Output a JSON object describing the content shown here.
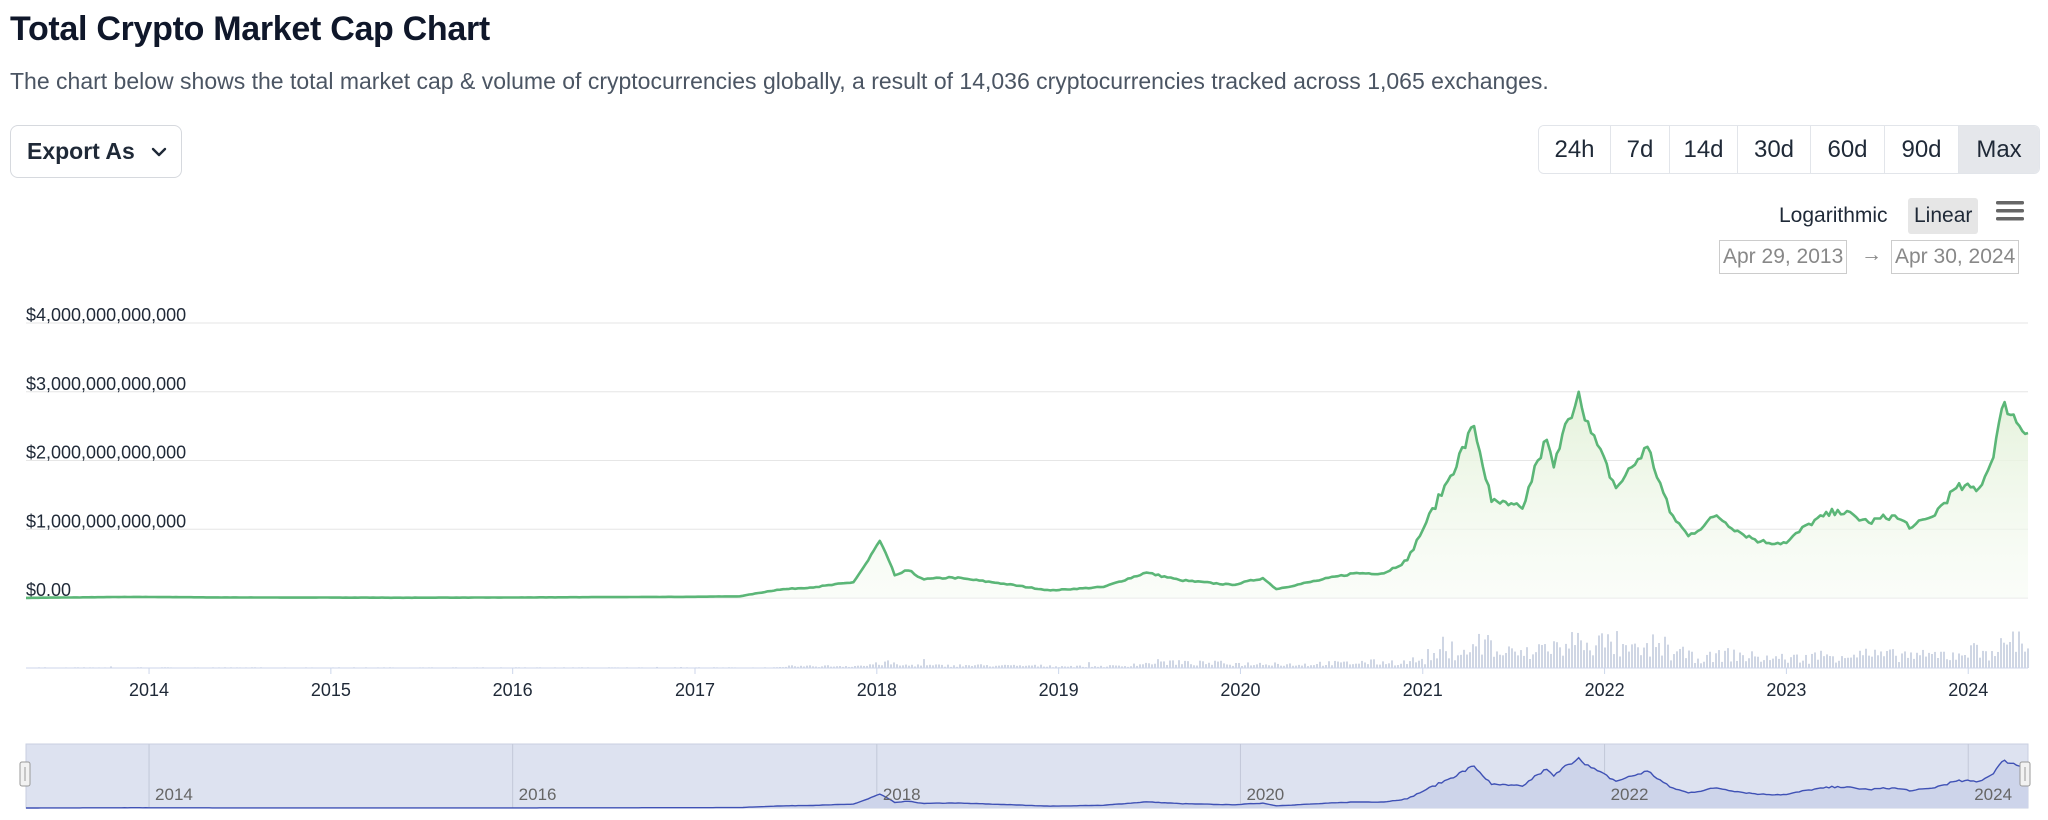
{
  "header": {
    "title": "Total Crypto Market Cap Chart",
    "subtitle": "The chart below shows the total market cap & volume of cryptocurrencies globally, a result of 14,036 cryptocurrencies tracked across 1,065 exchanges."
  },
  "toolbar": {
    "export_label": "Export As",
    "ranges": [
      "24h",
      "7d",
      "14d",
      "30d",
      "60d",
      "90d",
      "Max"
    ],
    "active_range": "Max",
    "scale_logarithmic": "Logarithmic",
    "scale_linear": "Linear",
    "active_scale": "Linear",
    "date_from": "Apr 29, 2013",
    "date_arrow": "→",
    "date_to": "Apr 30, 2024"
  },
  "colors": {
    "line": "#5bb677",
    "area": "#e9f5e1",
    "volume": "#cfd6e4",
    "navigator_fill": "#dde2f0",
    "navigator_line": "#3f51b5"
  },
  "chart_data": {
    "type": "line",
    "series": [
      {
        "name": "Market Cap",
        "x": [
          "2013-04-29",
          "2013-12-01",
          "2014-06-01",
          "2015-01-01",
          "2015-06-01",
          "2016-01-01",
          "2016-06-01",
          "2017-01-01",
          "2017-04-01",
          "2017-06-15",
          "2017-09-01",
          "2017-11-15",
          "2017-12-15",
          "2018-01-07",
          "2018-02-06",
          "2018-03-05",
          "2018-04-06",
          "2018-06-01",
          "2018-09-01",
          "2018-12-15",
          "2019-04-01",
          "2019-06-26",
          "2019-09-01",
          "2019-12-15",
          "2020-02-15",
          "2020-03-13",
          "2020-06-01",
          "2020-08-15",
          "2020-10-15",
          "2020-12-01",
          "2021-01-08",
          "2021-02-20",
          "2021-04-14",
          "2021-05-19",
          "2021-06-22",
          "2021-07-20",
          "2021-08-20",
          "2021-09-07",
          "2021-09-21",
          "2021-10-20",
          "2021-11-10",
          "2021-12-05",
          "2022-01-24",
          "2022-03-28",
          "2022-05-12",
          "2022-06-18",
          "2022-08-14",
          "2022-10-01",
          "2022-11-10",
          "2023-01-01",
          "2023-02-15",
          "2023-04-14",
          "2023-06-15",
          "2023-08-01",
          "2023-09-11",
          "2023-10-20",
          "2023-12-08",
          "2024-01-23",
          "2024-02-15",
          "2024-03-14",
          "2024-04-13",
          "2024-04-30"
        ],
        "y": [
          1500000000.0,
          16000000000.0,
          8000000000.0,
          6000000000.0,
          4000000000.0,
          7000000000.0,
          12000000000.0,
          18000000000.0,
          25000000000.0,
          120000000000.0,
          160000000000.0,
          230000000000.0,
          550000000000.0,
          830000000000.0,
          330000000000.0,
          400000000000.0,
          270000000000.0,
          300000000000.0,
          220000000000.0,
          110000000000.0,
          160000000000.0,
          370000000000.0,
          260000000000.0,
          190000000000.0,
          290000000000.0,
          130000000000.0,
          250000000000.0,
          360000000000.0,
          360000000000.0,
          550000000000.0,
          1100000000000.0,
          1700000000000.0,
          2500000000000.0,
          1400000000000.0,
          1350000000000.0,
          1300000000000.0,
          2000000000000.0,
          2300000000000.0,
          1900000000000.0,
          2600000000000.0,
          3000000000000.0,
          2400000000000.0,
          1600000000000.0,
          2200000000000.0,
          1250000000000.0,
          900000000000.0,
          1200000000000.0,
          950000000000.0,
          820000000000.0,
          800000000000.0,
          1080000000000.0,
          1280000000000.0,
          1100000000000.0,
          1200000000000.0,
          1030000000000.0,
          1180000000000.0,
          1600000000000.0,
          1600000000000.0,
          1950000000000.0,
          2850000000000.0,
          2500000000000.0,
          2400000000000.0
        ]
      }
    ],
    "ylim": [
      0,
      4000000000000
    ],
    "yticks": [
      "$4,000,000,000,000",
      "$3,000,000,000,000",
      "$2,000,000,000,000",
      "$1,000,000,000,000",
      "$0.00"
    ],
    "xticks": [
      "2014",
      "2015",
      "2016",
      "2017",
      "2018",
      "2019",
      "2020",
      "2021",
      "2022",
      "2023",
      "2024"
    ],
    "navigator_ticks": [
      "2014",
      "2016",
      "2018",
      "2020",
      "2022",
      "2024"
    ],
    "grid": true,
    "legend": "none"
  }
}
